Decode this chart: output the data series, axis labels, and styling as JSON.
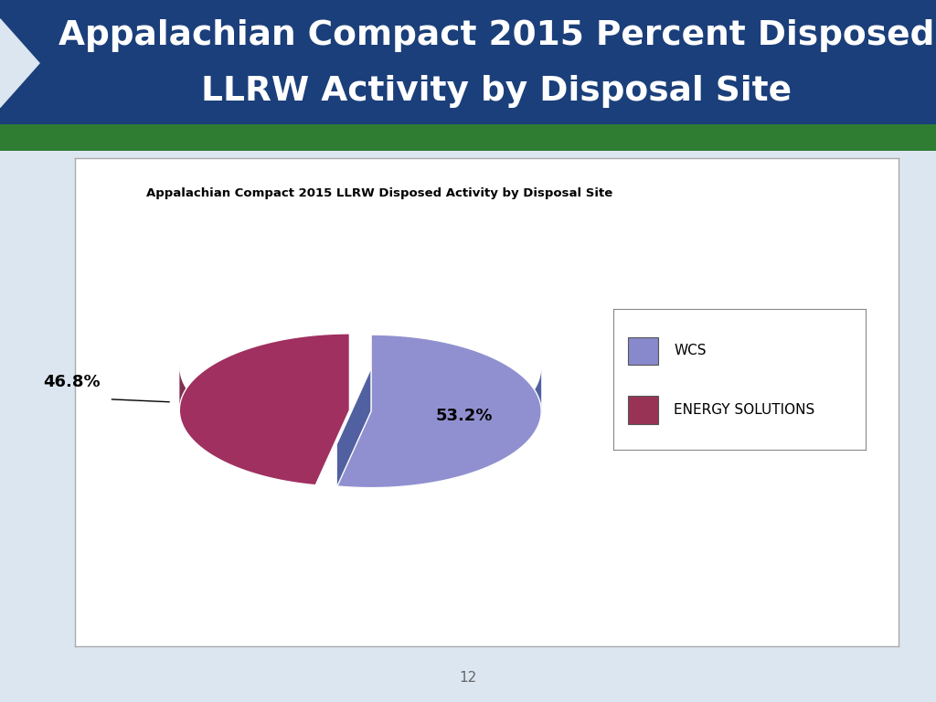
{
  "title": "Appalachian Compact 2015 LLRW Disposed Activity by Disposal Site",
  "header_line1": "Appalachian Compact 2015 Percent Disposed",
  "header_line2": "LLRW Activity by Disposal Site",
  "header_bg_color": "#1B3F7A",
  "header_text_color": "#ffffff",
  "green_bar_color": "#2e7d32",
  "values": [
    53.2,
    46.8
  ],
  "labels": [
    "WCS",
    "ENERGY SOLUTIONS"
  ],
  "colors_top": [
    "#9090d0",
    "#a03060"
  ],
  "colors_side": [
    "#5060a0",
    "#803050"
  ],
  "explode": [
    0.08,
    0.08
  ],
  "autopct_labels": [
    "53.2%",
    "46.8%"
  ],
  "page_number": "12",
  "chart_bg": "#ffffff",
  "outer_bg": "#dce6f1",
  "legend_colors": [
    "#8888cc",
    "#993355"
  ]
}
